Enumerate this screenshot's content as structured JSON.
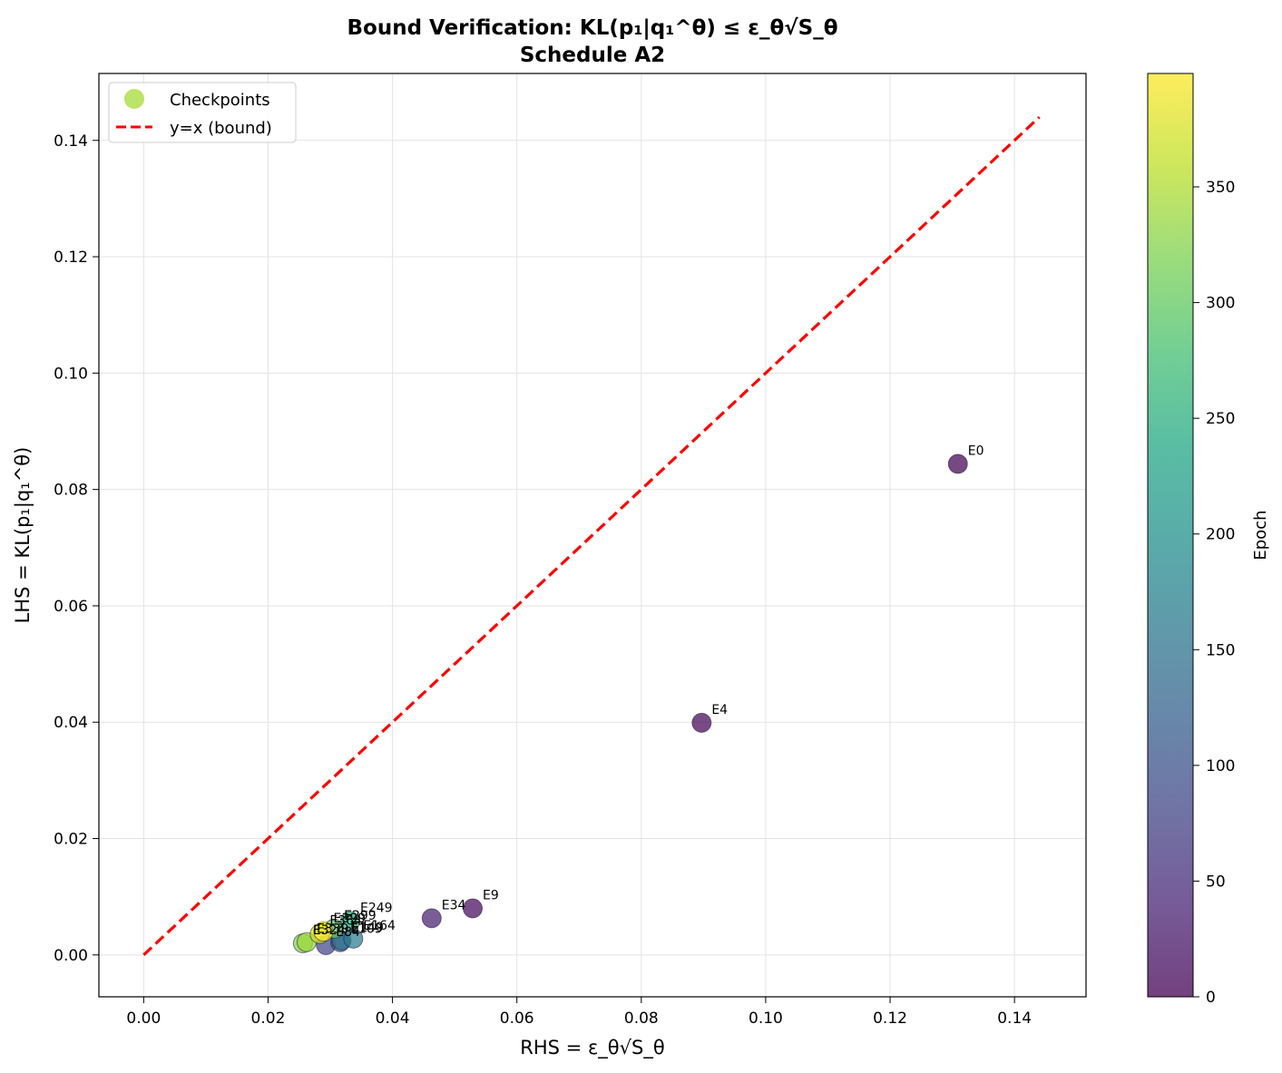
{
  "chart_data": {
    "type": "scatter",
    "title": "Bound Verification: KL(p₁|q₁^θ) ≤ ε_θ√S_θ",
    "subtitle": "Schedule A2",
    "xlabel": "RHS = ε_θ√S_θ",
    "ylabel": "LHS = KL(p₁|q₁^θ)",
    "xlim": [
      -0.0072,
      0.1515
    ],
    "ylim": [
      -0.0072,
      0.1515
    ],
    "xticks": [
      "0.00",
      "0.02",
      "0.04",
      "0.06",
      "0.08",
      "0.10",
      "0.12",
      "0.14"
    ],
    "yticks": [
      "0.00",
      "0.02",
      "0.04",
      "0.06",
      "0.08",
      "0.10",
      "0.12",
      "0.14"
    ],
    "grid": true,
    "legend_position": "top-left",
    "legend": [
      {
        "label": "Checkpoints",
        "kind": "marker",
        "color": "#a5db36"
      },
      {
        "label": "y=x (bound)",
        "kind": "dashed-line",
        "color": "#ff0000"
      }
    ],
    "bound_line": {
      "x": [
        0,
        0.144
      ],
      "y": [
        0,
        0.144
      ],
      "color": "#ff0000",
      "style": "dashed"
    },
    "colorbar": {
      "label": "Epoch",
      "colormap": "viridis",
      "range": [
        0,
        399
      ],
      "ticks": [
        "0",
        "50",
        "100",
        "150",
        "200",
        "250",
        "300",
        "350"
      ]
    },
    "points": [
      {
        "label": "E0",
        "epoch": 0,
        "x": 0.1309,
        "y": 0.0844
      },
      {
        "label": "E4",
        "epoch": 4,
        "x": 0.0897,
        "y": 0.0399
      },
      {
        "label": "E9",
        "epoch": 9,
        "x": 0.0529,
        "y": 0.008
      },
      {
        "label": "E34",
        "epoch": 34,
        "x": 0.0463,
        "y": 0.0063
      },
      {
        "label": "E84",
        "epoch": 84,
        "x": 0.0293,
        "y": 0.0017
      },
      {
        "label": "E109",
        "epoch": 109,
        "x": 0.0316,
        "y": 0.0022
      },
      {
        "label": "E149",
        "epoch": 149,
        "x": 0.0318,
        "y": 0.0025
      },
      {
        "label": "E164",
        "epoch": 164,
        "x": 0.0337,
        "y": 0.0028
      },
      {
        "label": "E249",
        "epoch": 249,
        "x": 0.0332,
        "y": 0.0058
      },
      {
        "label": "E299",
        "epoch": 299,
        "x": 0.0306,
        "y": 0.0045
      },
      {
        "label": "E324",
        "epoch": 324,
        "x": 0.0256,
        "y": 0.002
      },
      {
        "label": "E339",
        "epoch": 339,
        "x": 0.0262,
        "y": 0.0022
      },
      {
        "label": "E364",
        "epoch": 364,
        "x": 0.0283,
        "y": 0.0036
      },
      {
        "label": "E399",
        "epoch": 399,
        "x": 0.0289,
        "y": 0.004
      }
    ]
  }
}
